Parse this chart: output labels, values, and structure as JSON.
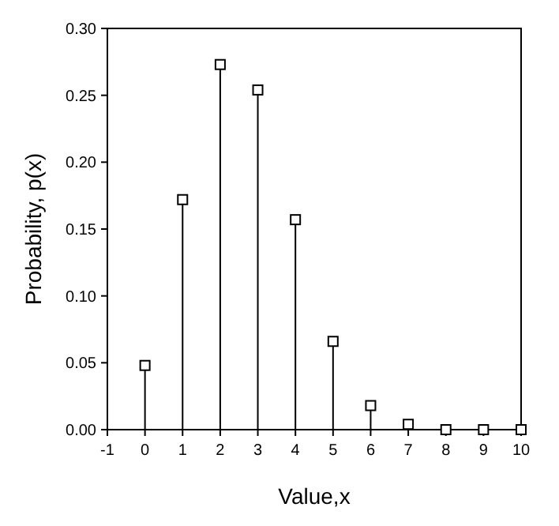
{
  "chart_data": {
    "type": "lollipop",
    "xlabel": "Value,x",
    "ylabel": "Probability, p(x)",
    "x": [
      0,
      1,
      2,
      3,
      4,
      5,
      6,
      7,
      8,
      9,
      10
    ],
    "values": [
      0.048,
      0.172,
      0.273,
      0.254,
      0.157,
      0.066,
      0.018,
      0.004,
      0,
      0,
      0
    ],
    "color": "#000000",
    "marker": "square",
    "xlim": [
      -1,
      10
    ],
    "xticks": [
      -1,
      0,
      1,
      2,
      3,
      4,
      5,
      6,
      7,
      8,
      9,
      10
    ],
    "ylim": [
      0,
      0.3
    ],
    "yticks": [
      {
        "value": 0,
        "label": "0.00"
      },
      {
        "value": 0.05,
        "label": "0.05"
      },
      {
        "value": 0.1,
        "label": "0.10"
      },
      {
        "value": 0.15,
        "label": "0.15"
      },
      {
        "value": 0.2,
        "label": "0.20"
      },
      {
        "value": 0.25,
        "label": "0.25"
      },
      {
        "value": 0.3,
        "label": "0.30"
      }
    ]
  }
}
